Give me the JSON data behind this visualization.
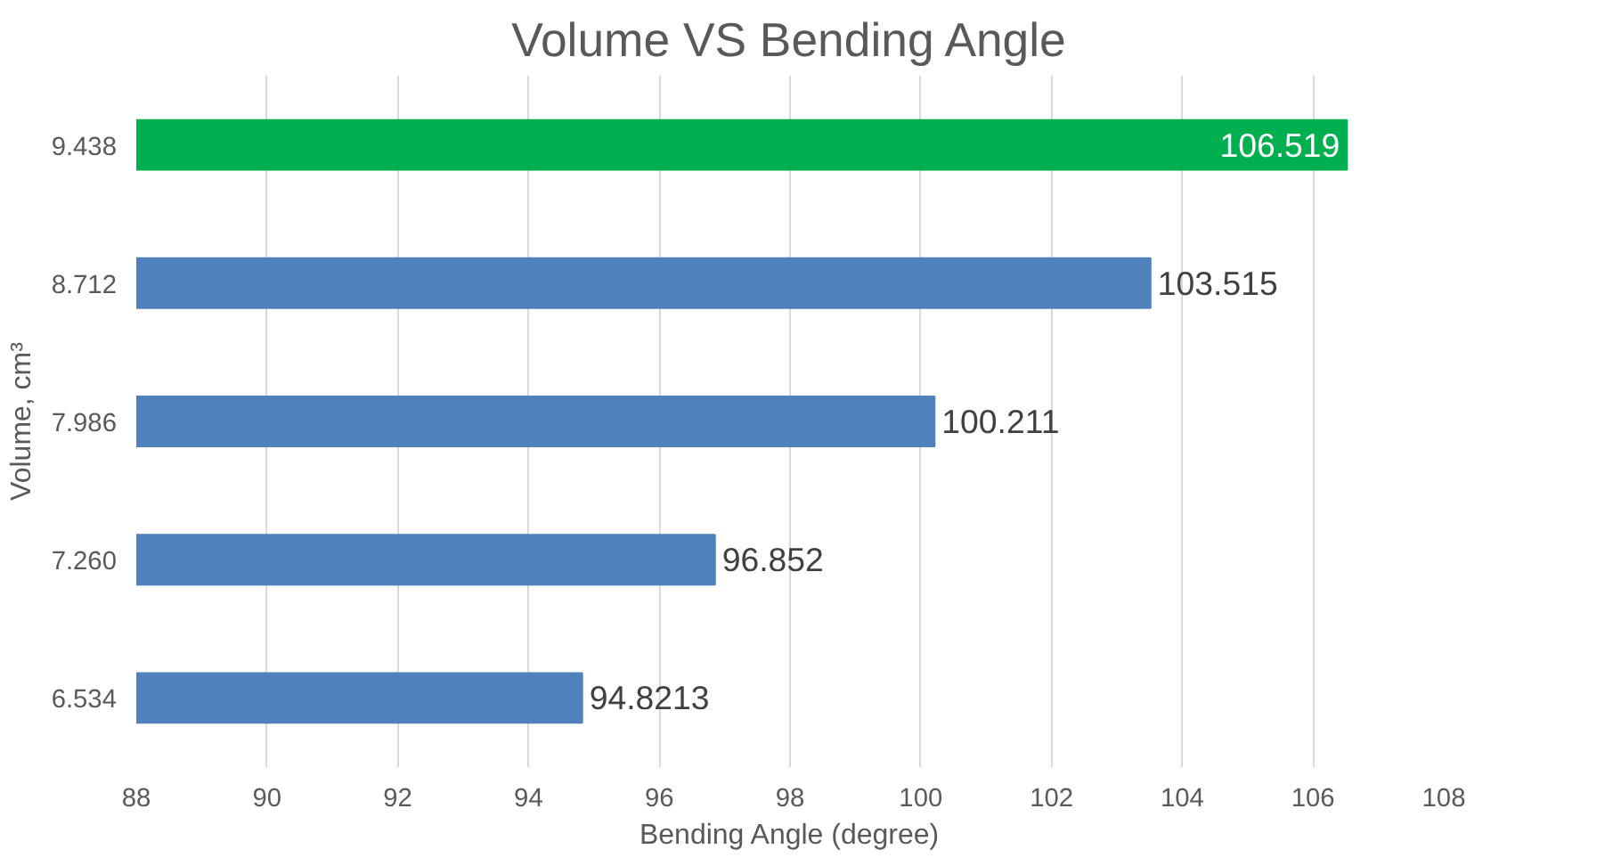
{
  "chart_data": {
    "type": "bar",
    "orientation": "horizontal",
    "title": "Volume VS Bending Angle",
    "xlabel": "Bending Angle (degree)",
    "ylabel": "Volume, cm³",
    "categories": [
      "9.438",
      "8.712",
      "7.986",
      "7.260",
      "6.534"
    ],
    "values": [
      106.519,
      103.515,
      100.211,
      96.852,
      94.8213
    ],
    "colors": [
      "#00b050",
      "#4f81bd",
      "#4f81bd",
      "#4f81bd",
      "#4f81bd"
    ],
    "xlim": [
      88,
      108
    ],
    "xticks": [
      88,
      90,
      92,
      94,
      96,
      98,
      100,
      102,
      104,
      106,
      108
    ],
    "grid": "x",
    "data_labels": true
  }
}
